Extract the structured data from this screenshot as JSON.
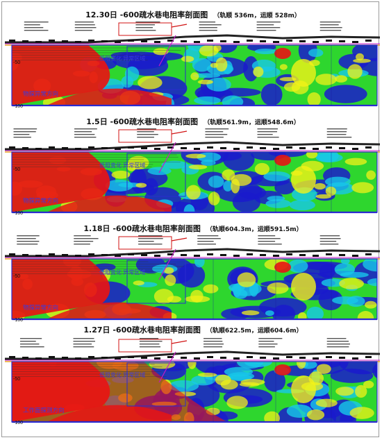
{
  "panels": [
    {
      "title": "12.30日 -600疏水巷电阻率剖面图",
      "subtitle": "（轨顺 536m，运顺 528m）",
      "zone_label": "物探异常方向",
      "anomaly_label": "低阻变化 异常区域",
      "depth_ticks": [
        "-50",
        "-100"
      ]
    },
    {
      "title": "1.5日 -600疏水巷电阻率剖面图",
      "subtitle": "（轨顺561.9m，运顺548.6m）",
      "zone_label": "物探异常方向",
      "anomaly_label": "低阻变化 异常区域",
      "depth_ticks": [
        "-50",
        "-100"
      ]
    },
    {
      "title": "1.18日 -600疏水巷电阻率剖面图",
      "subtitle": "（轨顺604.3m，运顺591.5m）",
      "zone_label": "物探异常方向",
      "anomaly_label": "低阻变化 异常区域",
      "depth_ticks": [
        "-50",
        "-100"
      ]
    },
    {
      "title": "1.27日 -600疏水巷电阻率剖面图",
      "subtitle": "（轨顺622.5m，运顺604.6m）",
      "zone_label": "工作面探测方向",
      "anomaly_label": "低阻变化 异常区域",
      "depth_ticks": [
        "-50",
        "-100"
      ]
    }
  ],
  "colors": {
    "high_resistivity": "#1a1acc",
    "mid_high": "#18c8e8",
    "mid": "#2ed62e",
    "mid_low": "#f2f218",
    "low_resistivity": "#e81414",
    "label_blue": "#3a3adf",
    "marker_magenta": "#c418c4"
  }
}
